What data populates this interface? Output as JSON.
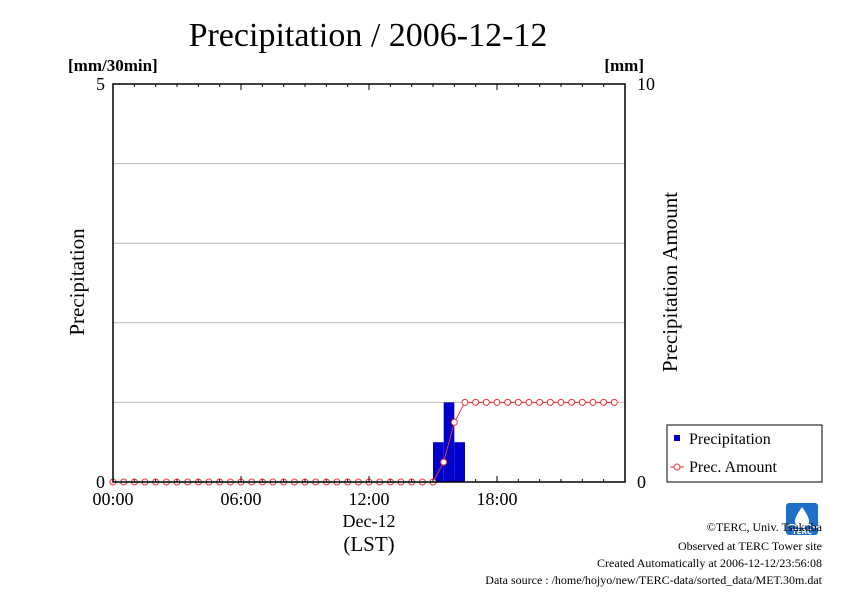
{
  "chart_data": {
    "type": "bar",
    "title": "Precipitation / 2006-12-12",
    "ylabel_left": "Precipitation",
    "ylabel_right": "Precipitation Amount",
    "unit_left": "[mm/30min]",
    "unit_right": "[mm]",
    "ylim_left": [
      0,
      5
    ],
    "ylim_right": [
      0,
      10
    ],
    "left_ticks": [
      "0",
      "5"
    ],
    "right_ticks": [
      "0",
      "10"
    ],
    "grid_y": [
      1,
      2,
      3,
      4
    ],
    "xlim_hours": [
      0,
      24
    ],
    "x_ticks": [
      {
        "hour": 0,
        "label": "00:00"
      },
      {
        "hour": 6,
        "label": "06:00"
      },
      {
        "hour": 12,
        "label": "12:00"
      },
      {
        "hour": 18,
        "label": "18:00"
      }
    ],
    "x_date_label": "Dec-12",
    "x_axis_label": "(LST)",
    "series": [
      {
        "name": "Precipitation",
        "kind": "bar",
        "color": "#0000cc",
        "axis": "left",
        "x": [
          "15:00",
          "15:30",
          "16:00"
        ],
        "values": [
          0.5,
          1.0,
          0.5
        ]
      },
      {
        "name": "Prec. Amount",
        "kind": "line",
        "color": "#ee3333",
        "axis": "right",
        "x_hours": [
          0,
          0.5,
          1,
          1.5,
          2,
          2.5,
          3,
          3.5,
          4,
          4.5,
          5,
          5.5,
          6,
          6.5,
          7,
          7.5,
          8,
          8.5,
          9,
          9.5,
          10,
          10.5,
          11,
          11.5,
          12,
          12.5,
          13,
          13.5,
          14,
          14.5,
          15,
          15.5,
          16,
          16.5,
          17,
          17.5,
          18,
          18.5,
          19,
          19.5,
          20,
          20.5,
          21,
          21.5,
          22,
          22.5,
          23,
          23.5
        ],
        "values": [
          0,
          0,
          0,
          0,
          0,
          0,
          0,
          0,
          0,
          0,
          0,
          0,
          0,
          0,
          0,
          0,
          0,
          0,
          0,
          0,
          0,
          0,
          0,
          0,
          0,
          0,
          0,
          0,
          0,
          0,
          0,
          0.5,
          1.5,
          2,
          2,
          2,
          2,
          2,
          2,
          2,
          2,
          2,
          2,
          2,
          2,
          2,
          2,
          2
        ]
      }
    ],
    "legend_position": "right"
  },
  "footer": {
    "copyright": "©TERC, Univ. Tsukuba",
    "observed": "Observed at TERC Tower site",
    "created": "Created Automatically at 2006-12-12/23:56:08",
    "source": "Data source : /home/hojyo/new/TERC-data/sorted_data/MET.30m.dat"
  },
  "logo": {
    "text": "TERC",
    "color": "#1e6fc8"
  }
}
